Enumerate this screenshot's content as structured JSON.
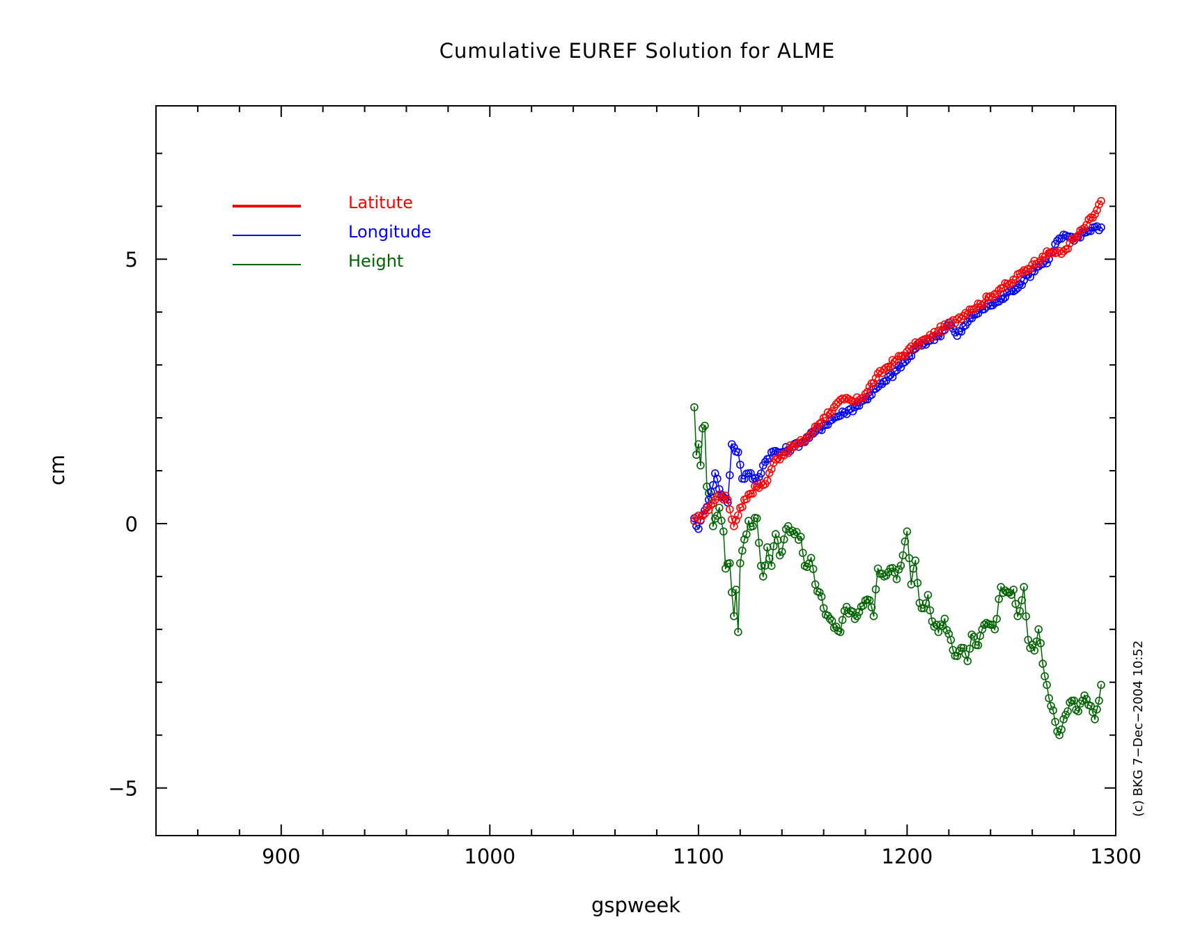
{
  "chart_data": {
    "type": "line",
    "title": "Cumulative EUREF Solution for ALME",
    "xlabel": "gspweek",
    "ylabel": "cm",
    "xlim": [
      840,
      1300
    ],
    "ylim": [
      -5.9,
      7.9
    ],
    "x_ticks": [
      900,
      1000,
      1100,
      1200,
      1300
    ],
    "y_ticks": [
      -5,
      0,
      5
    ],
    "x_tick_labels": [
      "900",
      "1000",
      "1100",
      "1200",
      "1300"
    ],
    "y_tick_labels": [
      "−5",
      "0",
      "5"
    ],
    "grid": false,
    "legend_position": "top-left",
    "credit": "(c) BKG 7−Dec−2004 10:52",
    "series": [
      {
        "name": "Latitute",
        "color": "#ff0000",
        "anchors": [
          [
            1098,
            0.05
          ],
          [
            1102,
            0.15
          ],
          [
            1106,
            0.35
          ],
          [
            1110,
            0.55
          ],
          [
            1114,
            0.45
          ],
          [
            1117,
            -0.05
          ],
          [
            1120,
            0.3
          ],
          [
            1124,
            0.55
          ],
          [
            1128,
            0.7
          ],
          [
            1132,
            0.75
          ],
          [
            1136,
            1.15
          ],
          [
            1140,
            1.3
          ],
          [
            1145,
            1.45
          ],
          [
            1150,
            1.55
          ],
          [
            1155,
            1.75
          ],
          [
            1160,
            2.0
          ],
          [
            1165,
            2.2
          ],
          [
            1170,
            2.35
          ],
          [
            1175,
            2.3
          ],
          [
            1180,
            2.45
          ],
          [
            1185,
            2.75
          ],
          [
            1190,
            2.95
          ],
          [
            1195,
            3.1
          ],
          [
            1200,
            3.25
          ],
          [
            1205,
            3.4
          ],
          [
            1210,
            3.5
          ],
          [
            1215,
            3.65
          ],
          [
            1220,
            3.75
          ],
          [
            1225,
            3.9
          ],
          [
            1230,
            4.05
          ],
          [
            1235,
            4.15
          ],
          [
            1240,
            4.3
          ],
          [
            1245,
            4.45
          ],
          [
            1250,
            4.55
          ],
          [
            1255,
            4.75
          ],
          [
            1260,
            4.9
          ],
          [
            1265,
            5.05
          ],
          [
            1270,
            5.15
          ],
          [
            1274,
            5.1
          ],
          [
            1278,
            5.3
          ],
          [
            1282,
            5.45
          ],
          [
            1286,
            5.65
          ],
          [
            1290,
            5.85
          ],
          [
            1293,
            6.1
          ]
        ]
      },
      {
        "name": "Longitude",
        "color": "#0000ff",
        "anchors": [
          [
            1098,
            0.1
          ],
          [
            1100,
            -0.1
          ],
          [
            1103,
            0.25
          ],
          [
            1106,
            0.6
          ],
          [
            1108,
            0.95
          ],
          [
            1111,
            0.55
          ],
          [
            1114,
            0.4
          ],
          [
            1116,
            1.5
          ],
          [
            1119,
            1.35
          ],
          [
            1121,
            0.85
          ],
          [
            1124,
            0.95
          ],
          [
            1128,
            0.8
          ],
          [
            1131,
            1.1
          ],
          [
            1135,
            1.35
          ],
          [
            1140,
            1.35
          ],
          [
            1145,
            1.45
          ],
          [
            1150,
            1.55
          ],
          [
            1155,
            1.7
          ],
          [
            1160,
            1.85
          ],
          [
            1165,
            2.0
          ],
          [
            1170,
            2.1
          ],
          [
            1175,
            2.2
          ],
          [
            1180,
            2.35
          ],
          [
            1185,
            2.55
          ],
          [
            1190,
            2.7
          ],
          [
            1195,
            2.9
          ],
          [
            1200,
            3.1
          ],
          [
            1205,
            3.35
          ],
          [
            1210,
            3.45
          ],
          [
            1215,
            3.55
          ],
          [
            1220,
            3.8
          ],
          [
            1224,
            3.55
          ],
          [
            1228,
            3.75
          ],
          [
            1232,
            3.95
          ],
          [
            1238,
            4.1
          ],
          [
            1244,
            4.2
          ],
          [
            1250,
            4.4
          ],
          [
            1256,
            4.6
          ],
          [
            1262,
            4.85
          ],
          [
            1268,
            5.0
          ],
          [
            1272,
            5.35
          ],
          [
            1276,
            5.45
          ],
          [
            1280,
            5.35
          ],
          [
            1285,
            5.5
          ],
          [
            1289,
            5.6
          ],
          [
            1293,
            5.6
          ]
        ]
      },
      {
        "name": "Height",
        "color": "#006400",
        "anchors": [
          [
            1098,
            2.2
          ],
          [
            1099,
            1.3
          ],
          [
            1100,
            1.5
          ],
          [
            1101,
            1.1
          ],
          [
            1102,
            1.8
          ],
          [
            1103,
            1.85
          ],
          [
            1104,
            0.7
          ],
          [
            1106,
            0.5
          ],
          [
            1107,
            -0.05
          ],
          [
            1109,
            0.15
          ],
          [
            1110,
            0.3
          ],
          [
            1112,
            -0.15
          ],
          [
            1113,
            -0.85
          ],
          [
            1115,
            -0.75
          ],
          [
            1116,
            -1.3
          ],
          [
            1117,
            -1.75
          ],
          [
            1118,
            -1.25
          ],
          [
            1119,
            -2.05
          ],
          [
            1120,
            -0.75
          ],
          [
            1122,
            -0.3
          ],
          [
            1124,
            0.05
          ],
          [
            1126,
            -0.05
          ],
          [
            1128,
            0.1
          ],
          [
            1130,
            -0.8
          ],
          [
            1131,
            -1.0
          ],
          [
            1133,
            -0.45
          ],
          [
            1135,
            -0.8
          ],
          [
            1137,
            -0.2
          ],
          [
            1139,
            -0.6
          ],
          [
            1141,
            -0.3
          ],
          [
            1143,
            -0.05
          ],
          [
            1146,
            -0.2
          ],
          [
            1149,
            -0.25
          ],
          [
            1151,
            -0.8
          ],
          [
            1154,
            -0.65
          ],
          [
            1156,
            -1.15
          ],
          [
            1158,
            -1.3
          ],
          [
            1160,
            -1.6
          ],
          [
            1163,
            -1.8
          ],
          [
            1166,
            -1.95
          ],
          [
            1168,
            -2.05
          ],
          [
            1170,
            -1.65
          ],
          [
            1173,
            -1.65
          ],
          [
            1176,
            -1.75
          ],
          [
            1179,
            -1.55
          ],
          [
            1182,
            -1.45
          ],
          [
            1184,
            -1.75
          ],
          [
            1186,
            -0.85
          ],
          [
            1189,
            -1.0
          ],
          [
            1192,
            -0.85
          ],
          [
            1195,
            -1.05
          ],
          [
            1198,
            -0.6
          ],
          [
            1200,
            -0.15
          ],
          [
            1202,
            -1.15
          ],
          [
            1204,
            -0.7
          ],
          [
            1206,
            -1.5
          ],
          [
            1208,
            -1.6
          ],
          [
            1210,
            -1.35
          ],
          [
            1212,
            -1.85
          ],
          [
            1215,
            -2.05
          ],
          [
            1218,
            -1.8
          ],
          [
            1221,
            -2.2
          ],
          [
            1223,
            -2.5
          ],
          [
            1226,
            -2.35
          ],
          [
            1229,
            -2.6
          ],
          [
            1231,
            -2.1
          ],
          [
            1234,
            -2.3
          ],
          [
            1236,
            -2.0
          ],
          [
            1239,
            -1.9
          ],
          [
            1242,
            -2.0
          ],
          [
            1245,
            -1.2
          ],
          [
            1248,
            -1.3
          ],
          [
            1251,
            -1.25
          ],
          [
            1253,
            -1.75
          ],
          [
            1256,
            -1.2
          ],
          [
            1258,
            -2.2
          ],
          [
            1261,
            -2.4
          ],
          [
            1263,
            -2.0
          ],
          [
            1265,
            -2.65
          ],
          [
            1267,
            -3.05
          ],
          [
            1269,
            -3.45
          ],
          [
            1271,
            -3.75
          ],
          [
            1273,
            -4.0
          ],
          [
            1275,
            -3.7
          ],
          [
            1277,
            -3.55
          ],
          [
            1279,
            -3.35
          ],
          [
            1282,
            -3.55
          ],
          [
            1285,
            -3.25
          ],
          [
            1288,
            -3.45
          ],
          [
            1290,
            -3.7
          ],
          [
            1292,
            -3.35
          ],
          [
            1293,
            -3.05
          ]
        ]
      }
    ]
  }
}
